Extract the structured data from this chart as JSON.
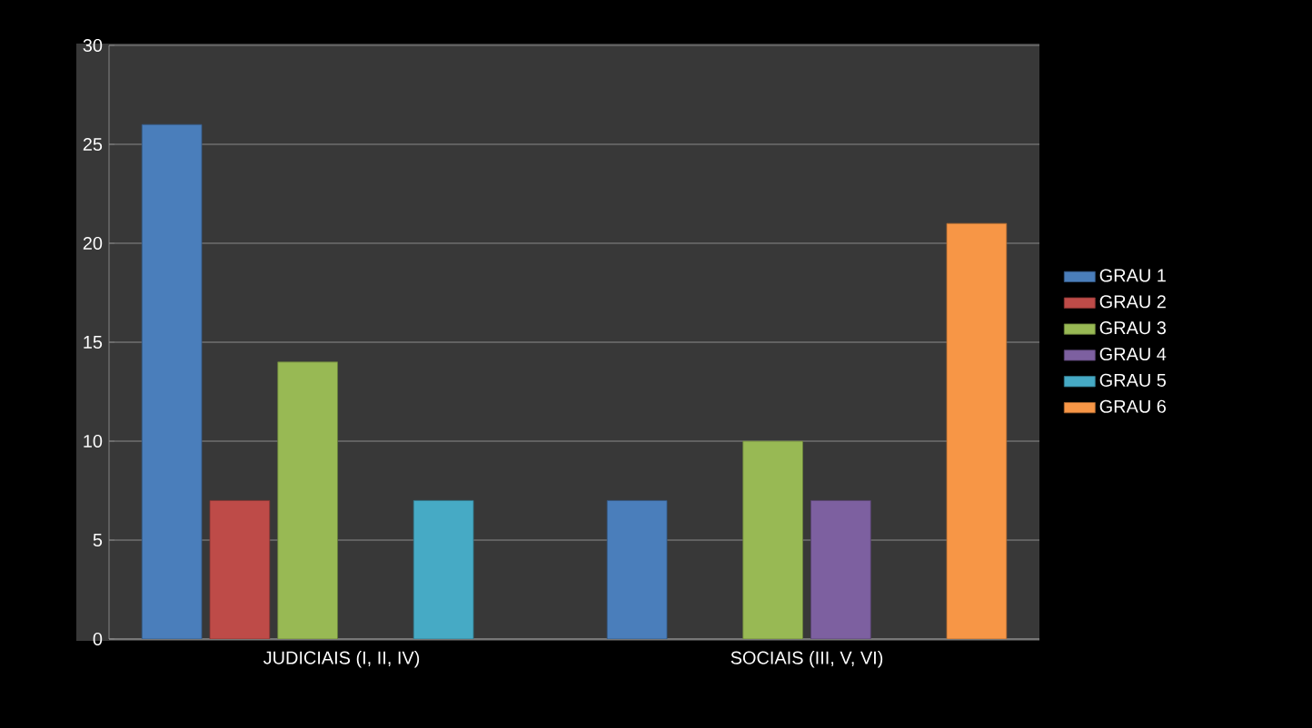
{
  "chart_data": {
    "type": "bar",
    "categories": [
      "JUDICIAIS (I, II, IV)",
      "SOCIAIS (III, V, VI)"
    ],
    "series": [
      {
        "name": "GRAU 1",
        "color": "#4a7ebb",
        "values": [
          26,
          7
        ]
      },
      {
        "name": "GRAU 2",
        "color": "#be4b48",
        "values": [
          7,
          null
        ]
      },
      {
        "name": "GRAU 3",
        "color": "#98b954",
        "values": [
          14,
          10
        ]
      },
      {
        "name": "GRAU 4",
        "color": "#7d60a0",
        "values": [
          null,
          7
        ]
      },
      {
        "name": "GRAU 5",
        "color": "#46aac5",
        "values": [
          7,
          null
        ]
      },
      {
        "name": "GRAU 6",
        "color": "#f79646",
        "values": [
          null,
          21
        ]
      }
    ],
    "ylim": [
      0,
      30
    ],
    "yticks": [
      0,
      5,
      10,
      15,
      20,
      25,
      30
    ],
    "grid": "y",
    "legend": "right"
  }
}
